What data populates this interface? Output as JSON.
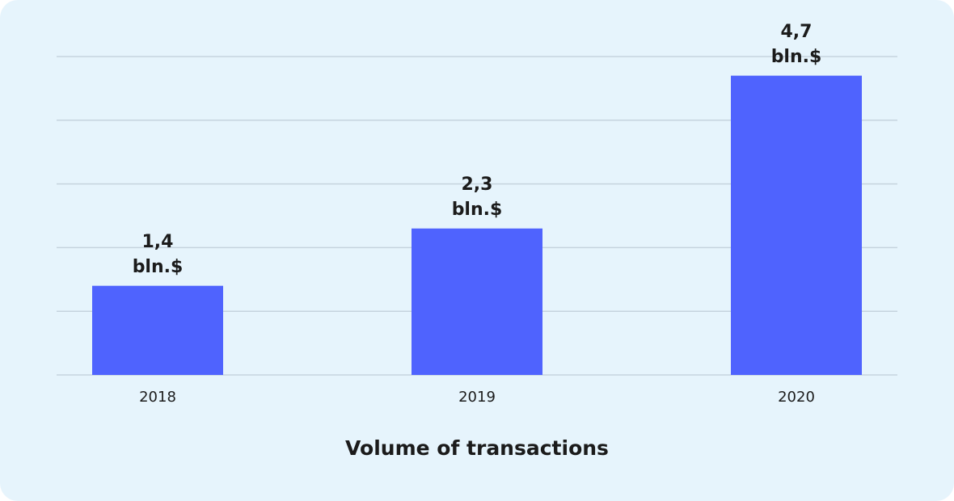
{
  "chart_data": {
    "type": "bar",
    "title": "Volume of transactions",
    "categories": [
      "2018",
      "2019",
      "2020"
    ],
    "values": [
      1.4,
      2.3,
      4.7
    ],
    "value_labels": [
      "1,4 bln.$",
      "2,3 bln.$",
      "4,7 bln.$"
    ],
    "color": "#4f63fe",
    "ylim": [
      0,
      5
    ],
    "yticks": [
      0,
      1,
      2,
      3,
      4,
      5
    ],
    "grid": true
  }
}
